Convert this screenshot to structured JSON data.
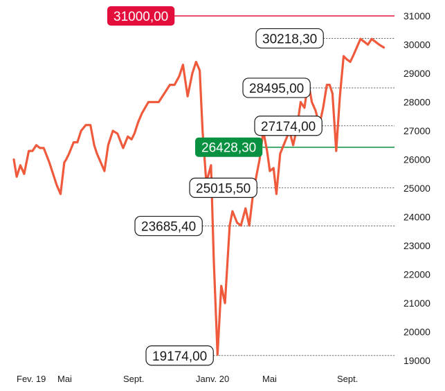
{
  "chart_data": {
    "type": "line",
    "title": "",
    "xlabel": "",
    "ylabel": "",
    "ylim": [
      19000,
      31000
    ],
    "y_ticks": [
      19000,
      20000,
      21000,
      22000,
      23000,
      24000,
      25000,
      26000,
      27000,
      28000,
      29000,
      30000,
      31000
    ],
    "y_tick_labels": [
      "19000",
      "20000",
      "21000",
      "22000",
      "23000",
      "24000",
      "25000",
      "26000",
      "27000",
      "28000",
      "29000",
      "30000",
      "31000"
    ],
    "x_tick_labels": [
      "Fev. 19",
      "Mai",
      "Sept.",
      "Janv. 20",
      "Mai",
      "Sept."
    ],
    "x_range": [
      0,
      21
    ],
    "x_ticks": [
      0,
      2.5,
      6.5,
      10.6,
      13.5,
      17.5
    ],
    "line_color": "#f05a3c",
    "series": [
      {
        "x": [
          0,
          0.15,
          0.35,
          0.55,
          0.8,
          1.0,
          1.2,
          1.4,
          1.6,
          1.9,
          2.05,
          2.3,
          2.5,
          2.7,
          2.8,
          2.95,
          3.2,
          3.4,
          3.6,
          3.85,
          4.1,
          4.3,
          4.45,
          4.65,
          4.85,
          5.05,
          5.3,
          5.55,
          5.85,
          6.1,
          6.3,
          6.45,
          6.65,
          6.85,
          7.2,
          7.55,
          7.75,
          8.05,
          8.35,
          8.6,
          8.85,
          9.05,
          9.3,
          9.55,
          9.75,
          9.95,
          10.1,
          10.3,
          10.55,
          10.7,
          10.9,
          11.1,
          11.3,
          11.55,
          11.7,
          11.95,
          12.15,
          12.4,
          12.6,
          12.8,
          13.0,
          13.15,
          13.35,
          13.55,
          13.7,
          13.9,
          14.05,
          14.25,
          14.5,
          14.75,
          14.95,
          15.15,
          15.35,
          15.55,
          15.75,
          15.95,
          16.15,
          16.35,
          16.55,
          16.75,
          16.9,
          17.05,
          17.25,
          17.45,
          17.65,
          17.8,
          18.0,
          18.15,
          18.35,
          18.55,
          18.75,
          18.95,
          19.15,
          19.35,
          19.55,
          19.8
        ],
        "y": [
          26000,
          25400,
          25800,
          25500,
          26300,
          26300,
          26500,
          26400,
          26400,
          25900,
          25600,
          25100,
          24800,
          25900,
          26000,
          26200,
          26600,
          26600,
          27000,
          27200,
          27200,
          26500,
          26200,
          25900,
          25600,
          26500,
          27000,
          26900,
          26400,
          26800,
          26700,
          26900,
          27300,
          27600,
          28000,
          28000,
          28000,
          28300,
          28600,
          28600,
          28900,
          29300,
          28200,
          29000,
          29400,
          29100,
          27000,
          25200,
          25800,
          22500,
          19200,
          21600,
          21000,
          23700,
          24200,
          23800,
          23700,
          24300,
          23700,
          24800,
          25500,
          26000,
          27000,
          26300,
          25600,
          25700,
          24800,
          26200,
          26600,
          27000,
          26500,
          27100,
          28000,
          27800,
          28700,
          28000,
          27700,
          27200,
          27800,
          28600,
          28600,
          28300,
          26300,
          28200,
          29600,
          29500,
          29400,
          29600,
          29900,
          30200,
          30100,
          30000,
          30200,
          30100,
          30000,
          29900
        ]
      }
    ],
    "reference_lines": [
      {
        "label": "31000,00",
        "value": 31000,
        "color": "#e30e3c"
      },
      {
        "label": "26428,30",
        "value": 26428.3,
        "color": "#089140"
      }
    ],
    "annotations": [
      {
        "label": "30218,30",
        "value": 30218.3
      },
      {
        "label": "28495,00",
        "value": 28495
      },
      {
        "label": "27174,00",
        "value": 27174
      },
      {
        "label": "25015,50",
        "value": 25015.5
      },
      {
        "label": "23685,40",
        "value": 23685.4
      },
      {
        "label": "19174,00",
        "value": 19174
      }
    ]
  }
}
